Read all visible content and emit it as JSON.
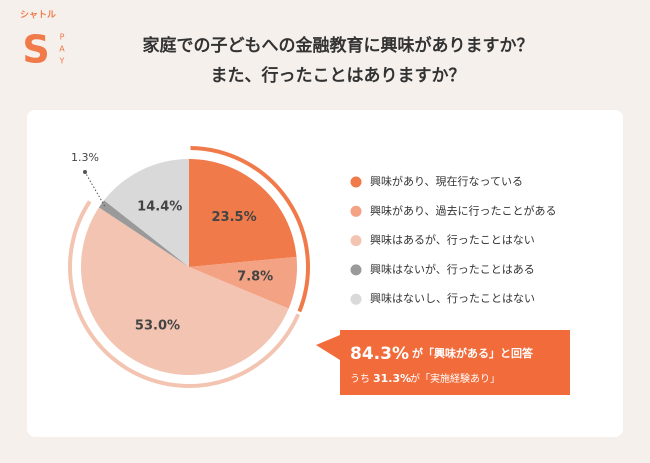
{
  "logo": {
    "brand": "シャトル",
    "mark": "S",
    "pay": [
      "P",
      "A",
      "Y"
    ]
  },
  "chart_data": {
    "type": "pie",
    "title": "家庭での子どもへの金融教育に興味がありますか？",
    "subtitle": "また、行ったことはありますか？",
    "categories": [
      "興味があり、現在行なっている",
      "興味があり、過去に行ったことがある",
      "興味はあるが、行ったことはない",
      "興味はないが、行ったことはある",
      "興味はないし、行ったことはない"
    ],
    "values": [
      23.5,
      7.8,
      53.0,
      1.3,
      14.4
    ],
    "value_labels": [
      "23.5%",
      "7.8%",
      "53.0%",
      "1.3%",
      "14.4%"
    ],
    "colors": [
      "#f07a4a",
      "#f3a283",
      "#f3c4b1",
      "#9a9a9a",
      "#d9d9d9"
    ],
    "callout": {
      "total_label": "84.3%",
      "total_text": "が「興味がある」と回答",
      "sub_prefix": "うち",
      "sub_label": "31.3%",
      "sub_text": "が「実施経験あり」"
    }
  }
}
